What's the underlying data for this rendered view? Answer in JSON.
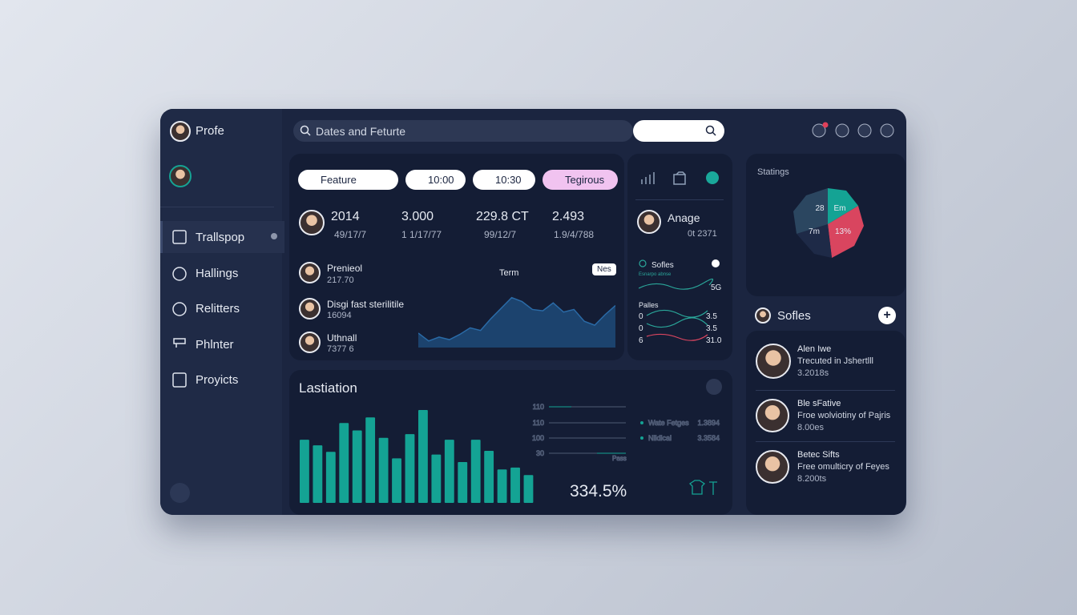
{
  "sidebar": {
    "profile": "Profe",
    "nav": [
      "Trallspop",
      "Hallings",
      "Relitters",
      "Phlnter",
      "Proyicts"
    ]
  },
  "search": {
    "placeholder": "Dates and Feturte"
  },
  "filters": [
    "Feature",
    "10:00",
    "10:30",
    "Tegirous"
  ],
  "stats": [
    {
      "value": "2014",
      "sub": "49/17/7"
    },
    {
      "value": "3.000",
      "sub": "1 1/17/77"
    },
    {
      "value": "229.8 CT",
      "sub": "99/12/7"
    },
    {
      "value": "2.493",
      "sub": "1.9/4/788"
    }
  ],
  "people": [
    {
      "name": "Prenieol",
      "sub": "217.70"
    },
    {
      "name": "Disgi fast sterilitile",
      "sub": "16094"
    },
    {
      "name": "Uthnall",
      "sub": "7377 6"
    }
  ],
  "trend": {
    "title": "Term",
    "badge": "Nes",
    "values": [
      22,
      10,
      16,
      12,
      20,
      30,
      26,
      44,
      60,
      76,
      70,
      58,
      56,
      68,
      54,
      58,
      40,
      34,
      50,
      64
    ],
    "ylim": [
      0,
      100
    ]
  },
  "mini": {
    "name": "Anage",
    "sub": "0t 2371",
    "row1": {
      "label": "Sofles",
      "note": "Esnarpo abnse",
      "value": "5G"
    },
    "row2": {
      "label": "Palles",
      "items": [
        {
          "left": "0",
          "right": "3.5"
        },
        {
          "left": "0",
          "right": "3.5"
        },
        {
          "left": "6",
          "right": "31.0"
        }
      ]
    }
  },
  "pie": {
    "title": "Statings",
    "labels": [
      "28",
      "Em",
      "7m",
      "13%"
    ]
  },
  "profiles": {
    "title": "Sofles",
    "items": [
      {
        "name": "Alen Iwe",
        "desc": "Trecuted in Jshertlll",
        "sub": "3.2018s"
      },
      {
        "name": "Ble sFative",
        "desc": "Froe wolviotiny of Pajris",
        "sub": "8.00es"
      },
      {
        "name": "Betec Sifts",
        "desc": "Free omulticry of Feyes",
        "sub": "8.200ts"
      }
    ]
  },
  "bars": {
    "title": "Lastiation",
    "values": [
      68,
      62,
      55,
      86,
      78,
      92,
      70,
      48,
      74,
      100,
      52,
      68,
      44,
      68,
      56,
      36,
      38,
      30
    ],
    "ylim": [
      0,
      100
    ],
    "color": "#14a394"
  },
  "levels": {
    "ticks": [
      "110",
      "110",
      "100",
      "30"
    ],
    "tag": "Pass",
    "big": "334.5%",
    "legend": [
      {
        "name": "Wate Fetges",
        "value": "1.3894"
      },
      {
        "name": "Nlidical",
        "value": "3.3584"
      }
    ]
  }
}
